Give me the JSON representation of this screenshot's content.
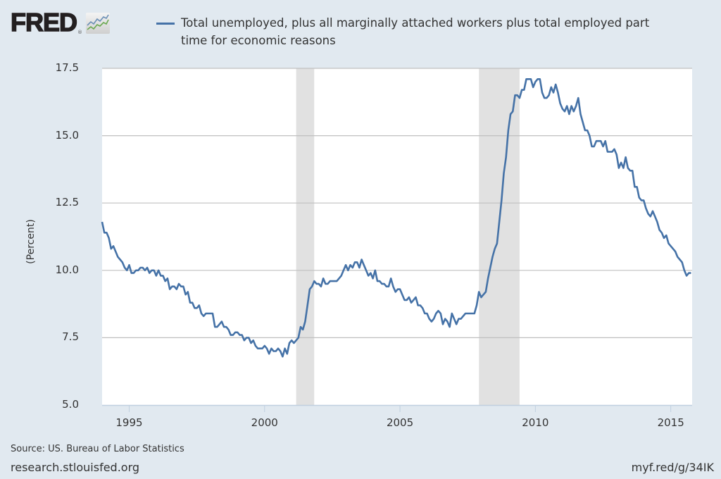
{
  "header": {
    "logo_text": "FRED",
    "logo_reg": "®",
    "legend_label": "Total unemployed, plus all marginally attached workers plus total employed part time for economic reasons",
    "legend_color": "#4572a7"
  },
  "footer": {
    "source": "Source: US. Bureau of Labor Statistics",
    "site": "research.stlouisfed.org",
    "short_link": "myf.red/g/34IK"
  },
  "chart_data": {
    "type": "line",
    "title": "Total unemployed, plus all marginally attached workers plus total employed part time for economic reasons",
    "xlabel": "",
    "ylabel": "(Percent)",
    "ylim": [
      5.0,
      17.5
    ],
    "yticks": [
      "5.0",
      "7.5",
      "10.0",
      "12.5",
      "15.0",
      "17.5"
    ],
    "xticks": [
      "1995",
      "2000",
      "2005",
      "2010",
      "2015"
    ],
    "x_start": "1994-01",
    "frequency": "monthly",
    "grid": true,
    "legend_position": "top",
    "line_color": "#4572a7",
    "recessions": [
      {
        "start": "2001-03",
        "end": "2001-11"
      },
      {
        "start": "2007-12",
        "end": "2009-06"
      }
    ],
    "series": [
      {
        "name": "Total unemployed, plus all marginally attached workers plus total employed part time for economic reasons",
        "values": [
          11.8,
          11.4,
          11.4,
          11.2,
          10.8,
          10.9,
          10.7,
          10.5,
          10.4,
          10.3,
          10.1,
          10.0,
          10.2,
          9.9,
          9.9,
          10.0,
          10.0,
          10.1,
          10.1,
          10.0,
          10.1,
          9.9,
          10.0,
          10.0,
          9.8,
          10.0,
          9.8,
          9.8,
          9.6,
          9.7,
          9.3,
          9.4,
          9.4,
          9.3,
          9.5,
          9.4,
          9.4,
          9.1,
          9.2,
          8.8,
          8.8,
          8.6,
          8.6,
          8.7,
          8.4,
          8.3,
          8.4,
          8.4,
          8.4,
          8.4,
          7.9,
          7.9,
          8.0,
          8.1,
          7.9,
          7.9,
          7.8,
          7.6,
          7.6,
          7.7,
          7.7,
          7.6,
          7.6,
          7.4,
          7.5,
          7.5,
          7.3,
          7.4,
          7.2,
          7.1,
          7.1,
          7.1,
          7.2,
          7.1,
          6.9,
          7.1,
          7.0,
          7.0,
          7.1,
          7.0,
          6.8,
          7.1,
          6.9,
          7.3,
          7.4,
          7.3,
          7.4,
          7.5,
          7.9,
          7.8,
          8.1,
          8.7,
          9.3,
          9.4,
          9.6,
          9.5,
          9.5,
          9.4,
          9.7,
          9.5,
          9.5,
          9.6,
          9.6,
          9.6,
          9.6,
          9.7,
          9.8,
          10.0,
          10.2,
          10.0,
          10.2,
          10.1,
          10.3,
          10.3,
          10.1,
          10.4,
          10.2,
          10.0,
          9.8,
          9.9,
          9.7,
          10.0,
          9.6,
          9.6,
          9.5,
          9.5,
          9.4,
          9.4,
          9.7,
          9.4,
          9.2,
          9.3,
          9.3,
          9.1,
          8.9,
          8.9,
          9.0,
          8.8,
          8.9,
          9.0,
          8.7,
          8.7,
          8.6,
          8.4,
          8.4,
          8.2,
          8.1,
          8.2,
          8.4,
          8.5,
          8.4,
          8.0,
          8.2,
          8.1,
          7.9,
          8.4,
          8.2,
          8.0,
          8.2,
          8.2,
          8.3,
          8.4,
          8.4,
          8.4,
          8.4,
          8.4,
          8.7,
          9.2,
          9.0,
          9.1,
          9.2,
          9.7,
          10.1,
          10.5,
          10.8,
          11.0,
          11.8,
          12.6,
          13.6,
          14.2,
          15.2,
          15.8,
          15.9,
          16.5,
          16.5,
          16.4,
          16.7,
          16.7,
          17.1,
          17.1,
          17.1,
          16.8,
          17.0,
          17.1,
          17.1,
          16.6,
          16.4,
          16.4,
          16.5,
          16.8,
          16.6,
          16.9,
          16.6,
          16.2,
          16.0,
          15.9,
          16.1,
          15.8,
          16.1,
          15.9,
          16.1,
          16.4,
          15.8,
          15.5,
          15.2,
          15.2,
          15.0,
          14.6,
          14.6,
          14.8,
          14.8,
          14.8,
          14.6,
          14.8,
          14.4,
          14.4,
          14.4,
          14.5,
          14.3,
          13.8,
          14.0,
          13.8,
          14.2,
          13.8,
          13.7,
          13.7,
          13.1,
          13.1,
          12.7,
          12.6,
          12.6,
          12.3,
          12.1,
          12.0,
          12.2,
          12.0,
          11.8,
          11.5,
          11.4,
          11.2,
          11.3,
          11.0,
          10.9,
          10.8,
          10.7,
          10.5,
          10.4,
          10.3,
          10.0,
          9.8,
          9.9,
          9.9
        ]
      }
    ]
  }
}
